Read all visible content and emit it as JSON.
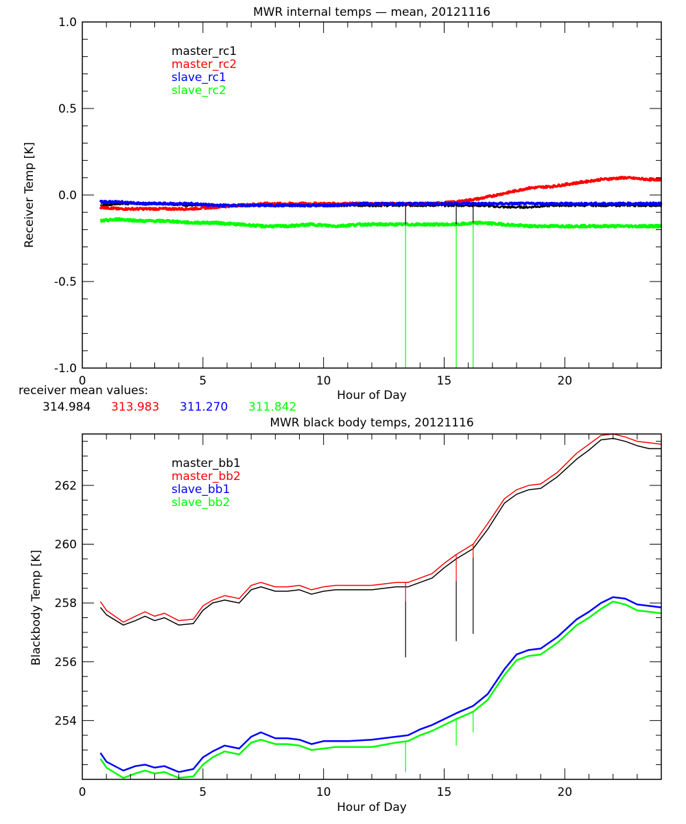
{
  "chart_data": [
    {
      "type": "line",
      "title": "MWR internal temps — mean, 20121116",
      "xlabel": "Hour of Day",
      "ylabel": "Receiver Temp [K]",
      "xlim": [
        0,
        24
      ],
      "ylim": [
        -1.0,
        1.0
      ],
      "x_ticks": [
        "0",
        "5",
        "10",
        "15",
        "20"
      ],
      "x_tick_values": [
        0,
        5,
        10,
        15,
        20
      ],
      "y_ticks": [
        "1.0",
        "0.5",
        "0.0",
        "-0.5",
        "-1.0"
      ],
      "y_tick_values": [
        1.0,
        0.5,
        0.0,
        -0.5,
        -1.0
      ],
      "grid": false,
      "legend_position": "top-left",
      "x": [
        0.75,
        1.5,
        2.5,
        3.5,
        4.5,
        5.5,
        6.5,
        7.5,
        8.5,
        9.5,
        10.5,
        11.5,
        12.5,
        13.5,
        14.5,
        15.5,
        16.5,
        17.5,
        18.5,
        19.5,
        20.5,
        21.5,
        22.5,
        23.5,
        24.0
      ],
      "series": [
        {
          "name": "master_rc1",
          "color": "#000000",
          "values": [
            -0.06,
            -0.05,
            -0.05,
            -0.05,
            -0.06,
            -0.06,
            -0.06,
            -0.06,
            -0.06,
            -0.06,
            -0.06,
            -0.06,
            -0.06,
            -0.06,
            -0.06,
            -0.06,
            -0.06,
            -0.07,
            -0.07,
            -0.06,
            -0.06,
            -0.06,
            -0.06,
            -0.06,
            -0.06
          ]
        },
        {
          "name": "master_rc2",
          "color": "#ff0000",
          "values": [
            -0.07,
            -0.08,
            -0.08,
            -0.08,
            -0.08,
            -0.07,
            -0.06,
            -0.05,
            -0.05,
            -0.05,
            -0.05,
            -0.05,
            -0.05,
            -0.05,
            -0.05,
            -0.04,
            -0.02,
            0.01,
            0.04,
            0.05,
            0.07,
            0.09,
            0.1,
            0.09,
            0.09
          ]
        },
        {
          "name": "slave_rc1",
          "color": "#0000ff",
          "values": [
            -0.04,
            -0.04,
            -0.05,
            -0.05,
            -0.05,
            -0.06,
            -0.06,
            -0.06,
            -0.06,
            -0.06,
            -0.06,
            -0.05,
            -0.05,
            -0.05,
            -0.05,
            -0.05,
            -0.05,
            -0.05,
            -0.05,
            -0.05,
            -0.05,
            -0.05,
            -0.05,
            -0.05,
            -0.05
          ]
        },
        {
          "name": "slave_rc2",
          "color": "#00ff00",
          "values": [
            -0.15,
            -0.14,
            -0.15,
            -0.15,
            -0.16,
            -0.16,
            -0.17,
            -0.18,
            -0.18,
            -0.17,
            -0.18,
            -0.17,
            -0.17,
            -0.17,
            -0.17,
            -0.17,
            -0.16,
            -0.17,
            -0.18,
            -0.18,
            -0.18,
            -0.18,
            -0.18,
            -0.18,
            -0.18
          ]
        }
      ],
      "spikes": [
        {
          "x": 13.4,
          "color": "#00ff00",
          "from": -0.17,
          "to": -1.0
        },
        {
          "x": 15.5,
          "color": "#00ff00",
          "from": -0.17,
          "to": -1.0
        },
        {
          "x": 16.2,
          "color": "#00ff00",
          "from": -0.16,
          "to": -1.0
        },
        {
          "x": 13.4,
          "color": "#000000",
          "from": -0.05,
          "to": -0.17
        },
        {
          "x": 15.5,
          "color": "#000000",
          "from": -0.05,
          "to": -0.17
        },
        {
          "x": 16.2,
          "color": "#000000",
          "from": -0.04,
          "to": -0.16
        }
      ],
      "annotation": {
        "label": "receiver mean values:",
        "values": [
          {
            "text": "314.984",
            "color": "#000000"
          },
          {
            "text": "313.983",
            "color": "#ff0000"
          },
          {
            "text": "311.270",
            "color": "#0000ff"
          },
          {
            "text": "311.842",
            "color": "#00ff00"
          }
        ]
      }
    },
    {
      "type": "line",
      "title": "MWR black body temps, 20121116",
      "xlabel": "Hour of Day",
      "ylabel": "Blackbody Temp [K]",
      "xlim": [
        0,
        24
      ],
      "ylim": [
        252.0,
        263.75
      ],
      "x_ticks": [
        "0",
        "5",
        "10",
        "15",
        "20"
      ],
      "x_tick_values": [
        0,
        5,
        10,
        15,
        20
      ],
      "y_ticks": [
        "262",
        "260",
        "258",
        "256",
        "254"
      ],
      "y_tick_values": [
        262,
        260,
        258,
        256,
        254
      ],
      "grid": false,
      "legend_position": "top-left",
      "x": [
        0.75,
        1.0,
        1.7,
        2.2,
        2.6,
        3.0,
        3.4,
        4.0,
        4.6,
        5.0,
        5.4,
        5.9,
        6.5,
        7.0,
        7.4,
        8.0,
        8.5,
        9.0,
        9.5,
        10.0,
        10.5,
        11.0,
        12.0,
        13.0,
        13.5,
        14.0,
        14.5,
        15.0,
        15.5,
        16.2,
        16.8,
        17.5,
        18.0,
        18.5,
        19.0,
        19.7,
        20.5,
        21.0,
        21.5,
        22.0,
        22.5,
        23.0,
        23.5,
        24.0
      ],
      "series": [
        {
          "name": "master_bb1",
          "color": "#000000",
          "values": [
            257.85,
            257.6,
            257.25,
            257.4,
            257.55,
            257.4,
            257.5,
            257.25,
            257.3,
            257.75,
            258.0,
            258.1,
            258.0,
            258.45,
            258.55,
            258.4,
            258.4,
            258.45,
            258.3,
            258.4,
            258.45,
            258.45,
            258.45,
            258.55,
            258.55,
            258.7,
            258.85,
            259.2,
            259.5,
            259.85,
            260.5,
            261.4,
            261.7,
            261.85,
            261.9,
            262.3,
            262.9,
            263.2,
            263.55,
            263.6,
            263.5,
            263.35,
            263.25,
            263.25
          ]
        },
        {
          "name": "master_bb2",
          "color": "#ff0000",
          "values": [
            258.05,
            257.75,
            257.35,
            257.55,
            257.7,
            257.55,
            257.65,
            257.4,
            257.45,
            257.9,
            258.1,
            258.25,
            258.15,
            258.6,
            258.7,
            258.55,
            258.55,
            258.6,
            258.45,
            258.55,
            258.6,
            258.6,
            258.6,
            258.7,
            258.7,
            258.85,
            259.0,
            259.35,
            259.65,
            260.0,
            260.7,
            261.55,
            261.85,
            262.0,
            262.05,
            262.45,
            263.1,
            263.4,
            263.7,
            263.75,
            263.65,
            263.5,
            263.45,
            263.4
          ]
        },
        {
          "name": "slave_bb1",
          "color": "#0000ff",
          "values": [
            252.9,
            252.6,
            252.3,
            252.45,
            252.5,
            252.4,
            252.45,
            252.25,
            252.35,
            252.75,
            252.95,
            253.15,
            253.05,
            253.45,
            253.6,
            253.4,
            253.4,
            253.35,
            253.2,
            253.3,
            253.3,
            253.3,
            253.35,
            253.45,
            253.5,
            253.7,
            253.85,
            254.05,
            254.25,
            254.5,
            254.9,
            255.75,
            256.25,
            256.4,
            256.45,
            256.85,
            257.45,
            257.7,
            258.0,
            258.2,
            258.15,
            257.95,
            257.9,
            257.85
          ]
        },
        {
          "name": "slave_bb2",
          "color": "#00ff00",
          "values": [
            252.7,
            252.4,
            252.05,
            252.2,
            252.3,
            252.2,
            252.25,
            252.05,
            252.1,
            252.5,
            252.75,
            252.95,
            252.85,
            253.25,
            253.35,
            253.2,
            253.2,
            253.15,
            253.0,
            253.05,
            253.1,
            253.1,
            253.1,
            253.25,
            253.3,
            253.5,
            253.65,
            253.85,
            254.05,
            254.3,
            254.7,
            255.55,
            256.05,
            256.2,
            256.25,
            256.65,
            257.25,
            257.5,
            257.8,
            258.05,
            257.95,
            257.75,
            257.7,
            257.65
          ]
        }
      ],
      "spikes": [
        {
          "x": 13.4,
          "color": "#ff0000",
          "from": 258.7,
          "to": 258.05
        },
        {
          "x": 13.4,
          "color": "#000000",
          "from": 258.05,
          "to": 256.15
        },
        {
          "x": 15.5,
          "color": "#ff0000",
          "from": 259.65,
          "to": 258.75
        },
        {
          "x": 15.5,
          "color": "#000000",
          "from": 258.75,
          "to": 256.7
        },
        {
          "x": 16.2,
          "color": "#ff0000",
          "from": 260.0,
          "to": 259.55
        },
        {
          "x": 16.2,
          "color": "#000000",
          "from": 259.55,
          "to": 256.95
        },
        {
          "x": 13.4,
          "color": "#00ff00",
          "from": 253.3,
          "to": 252.25
        },
        {
          "x": 15.5,
          "color": "#00ff00",
          "from": 254.05,
          "to": 253.15
        },
        {
          "x": 16.2,
          "color": "#00ff00",
          "from": 254.3,
          "to": 253.6
        }
      ]
    }
  ]
}
